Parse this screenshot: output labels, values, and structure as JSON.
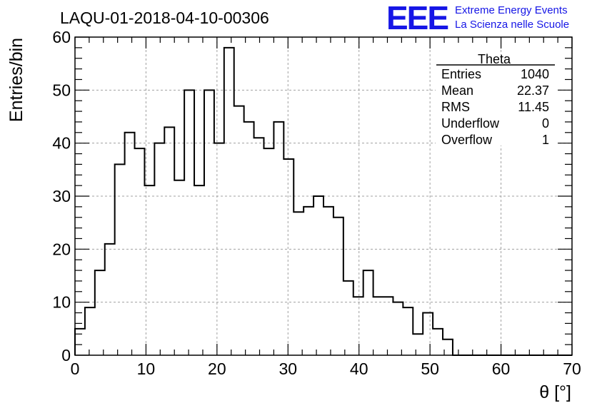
{
  "header": {
    "run_title": "LAQU-01-2018-04-10-00306",
    "logo_text": "EEE",
    "logo_line1": "Extreme Energy Events",
    "logo_line2": "La Scienza nelle Scuole"
  },
  "stats": {
    "title": "Theta",
    "rows": [
      {
        "label": "Entries",
        "value": "1040"
      },
      {
        "label": "Mean",
        "value": "22.37"
      },
      {
        "label": "RMS",
        "value": "11.45"
      },
      {
        "label": "Underflow",
        "value": "0"
      },
      {
        "label": "Overflow",
        "value": "1"
      }
    ]
  },
  "chart_data": {
    "type": "histogram",
    "title": "LAQU-01-2018-04-10-00306",
    "xlabel": "θ [°]",
    "ylabel": "Entries/bin",
    "xlim": [
      0,
      70
    ],
    "ylim": [
      0,
      60
    ],
    "bin_width": 1.4,
    "xticks": [
      0,
      10,
      20,
      30,
      40,
      50,
      60,
      70
    ],
    "yticks": [
      0,
      10,
      20,
      30,
      40,
      50,
      60
    ],
    "grid": true,
    "color": "#000000",
    "values": [
      5,
      9,
      16,
      21,
      36,
      42,
      39,
      32,
      40,
      43,
      33,
      50,
      32,
      50,
      40,
      58,
      47,
      44,
      41,
      39,
      44,
      37,
      27,
      28,
      30,
      28,
      26,
      14,
      11,
      16,
      11,
      11,
      10,
      9,
      4,
      8,
      5,
      3,
      0,
      0,
      0,
      0,
      0,
      0,
      0,
      0,
      0,
      0,
      0,
      0
    ]
  }
}
